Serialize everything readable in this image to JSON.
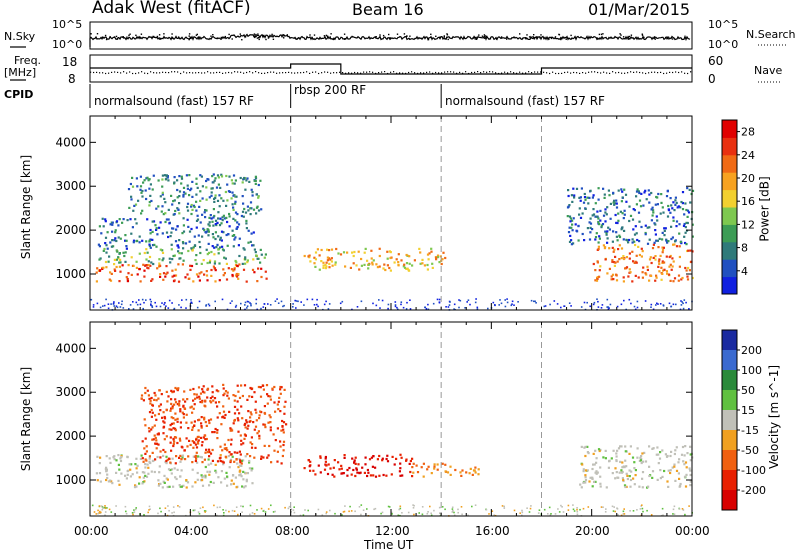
{
  "header": {
    "station": "Adak West (fitACF)",
    "beam": "Beam 16",
    "date": "01/Mar/2015"
  },
  "top_panels": {
    "nsky_label": "N.Sky",
    "nsearch_label": "N.Search",
    "nsky_ticks": [
      "10^5",
      "10^0"
    ],
    "nsearch_ticks": [
      "10^5",
      "10^0"
    ],
    "freq_label_line1": "Freq.",
    "freq_label_line2": "[MHz]",
    "freq_ticks": [
      "18",
      "8"
    ],
    "nave_label": "Nave",
    "nave_ticks": [
      "60",
      "0"
    ],
    "cpid_label": "CPID",
    "cpid_segments": [
      {
        "label": "normalsound (fast) 157 RF",
        "start_hour": 0
      },
      {
        "label": "rbsp 200 RF",
        "start_hour": 8
      },
      {
        "label": "normalsound (fast) 157 RF",
        "start_hour": 14
      }
    ]
  },
  "chart_data": [
    {
      "type": "heatmap",
      "title": "",
      "xlabel": "Time UT",
      "ylabel": "Slant Range [km]",
      "x_range_hours": [
        0,
        24
      ],
      "x_tick_labels": [
        "00:00",
        "04:00",
        "08:00",
        "12:00",
        "16:00",
        "20:00",
        "00:00"
      ],
      "ylim_km": [
        180,
        4600
      ],
      "y_tick_values": [
        1000,
        2000,
        3000,
        4000
      ],
      "mode_change_hours": [
        8,
        14,
        18
      ],
      "colorbar": {
        "label": "Power [dB]",
        "ticks": [
          "4",
          "8",
          "12",
          "16",
          "20",
          "24",
          "28"
        ],
        "colors": [
          "#1020e0",
          "#2050c0",
          "#2f7a7a",
          "#3c9c55",
          "#7ec850",
          "#f2d030",
          "#f7a220",
          "#f06a15",
          "#e83010",
          "#e00000"
        ]
      },
      "scatter_regions": [
        {
          "x": [
            0.2,
            7.0
          ],
          "range_km": [
            850,
            1250
          ],
          "power_db": 26
        },
        {
          "x": [
            0.2,
            7.0
          ],
          "range_km": [
            1250,
            1600
          ],
          "power_db": 14
        },
        {
          "x": [
            0.3,
            6.5
          ],
          "range_km": [
            1600,
            2300
          ],
          "power_db": 8
        },
        {
          "x": [
            1.5,
            6.8
          ],
          "range_km": [
            2300,
            3300
          ],
          "power_db": 10
        },
        {
          "x": [
            8.5,
            14.2
          ],
          "range_km": [
            1100,
            1600
          ],
          "power_db": 20
        },
        {
          "x": [
            20.0,
            24.0
          ],
          "range_km": [
            850,
            1700
          ],
          "power_db": 24
        },
        {
          "x": [
            19.0,
            24.0
          ],
          "range_km": [
            1700,
            3000
          ],
          "power_db": 8
        }
      ]
    },
    {
      "type": "heatmap",
      "title": "",
      "xlabel": "Time UT",
      "ylabel": "Slant Range [km]",
      "x_range_hours": [
        0,
        24
      ],
      "x_tick_labels": [
        "00:00",
        "04:00",
        "08:00",
        "12:00",
        "16:00",
        "20:00",
        "00:00"
      ],
      "ylim_km": [
        180,
        4600
      ],
      "y_tick_values": [
        1000,
        2000,
        3000,
        4000
      ],
      "mode_change_hours": [
        8,
        14,
        18
      ],
      "colorbar": {
        "label": "Velocity [m s^-1]",
        "ticks": [
          "200",
          "100",
          "50",
          "15",
          "-15",
          "-50",
          "-100",
          "-200"
        ],
        "colors": [
          "#1a2aa0",
          "#3a6ad0",
          "#2a8a3a",
          "#60c040",
          "#c0c0b8",
          "#f0a020",
          "#f06010",
          "#e82000",
          "#d80000"
        ]
      },
      "scatter_regions": [
        {
          "x": [
            0.2,
            6.5
          ],
          "range_km": [
            850,
            1600
          ],
          "velocity": 0
        },
        {
          "x": [
            2.0,
            7.8
          ],
          "range_km": [
            1400,
            3200
          ],
          "velocity": -100
        },
        {
          "x": [
            8.5,
            12.8
          ],
          "range_km": [
            1100,
            1600
          ],
          "velocity": -200
        },
        {
          "x": [
            12.8,
            15.5
          ],
          "range_km": [
            1100,
            1400
          ],
          "velocity": -50
        },
        {
          "x": [
            19.5,
            24.0
          ],
          "range_km": [
            850,
            1800
          ],
          "velocity": 0
        }
      ]
    }
  ]
}
